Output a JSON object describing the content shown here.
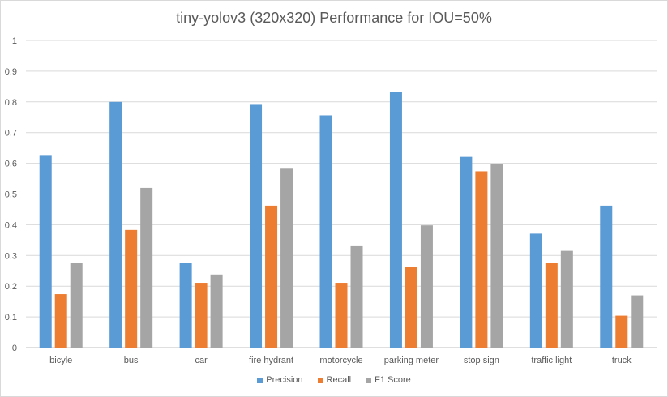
{
  "chart_data": {
    "type": "bar",
    "title": "tiny-yolov3 (320x320) Performance for IOU=50%",
    "xlabel": "",
    "ylabel": "",
    "categories": [
      "bicyle",
      "bus",
      "car",
      "fire hydrant",
      "motorcycle",
      "parking meter",
      "stop sign",
      "traffic light",
      "truck"
    ],
    "series": [
      {
        "name": "Precision",
        "color": "#5b9bd5",
        "values": [
          0.627,
          0.8,
          0.275,
          0.793,
          0.756,
          0.833,
          0.621,
          0.371,
          0.462
        ]
      },
      {
        "name": "Recall",
        "color": "#ed7d31",
        "values": [
          0.174,
          0.383,
          0.211,
          0.462,
          0.211,
          0.263,
          0.574,
          0.275,
          0.104
        ]
      },
      {
        "name": "F1 Score",
        "color": "#a5a5a5",
        "values": [
          0.275,
          0.52,
          0.238,
          0.585,
          0.33,
          0.398,
          0.598,
          0.315,
          0.17
        ]
      }
    ],
    "ylim": [
      0,
      1
    ],
    "yticks": [
      "0",
      "0.1",
      "0.2",
      "0.3",
      "0.4",
      "0.5",
      "0.6",
      "0.7",
      "0.8",
      "0.9",
      "1"
    ],
    "grid": true,
    "legend": "bottom"
  }
}
